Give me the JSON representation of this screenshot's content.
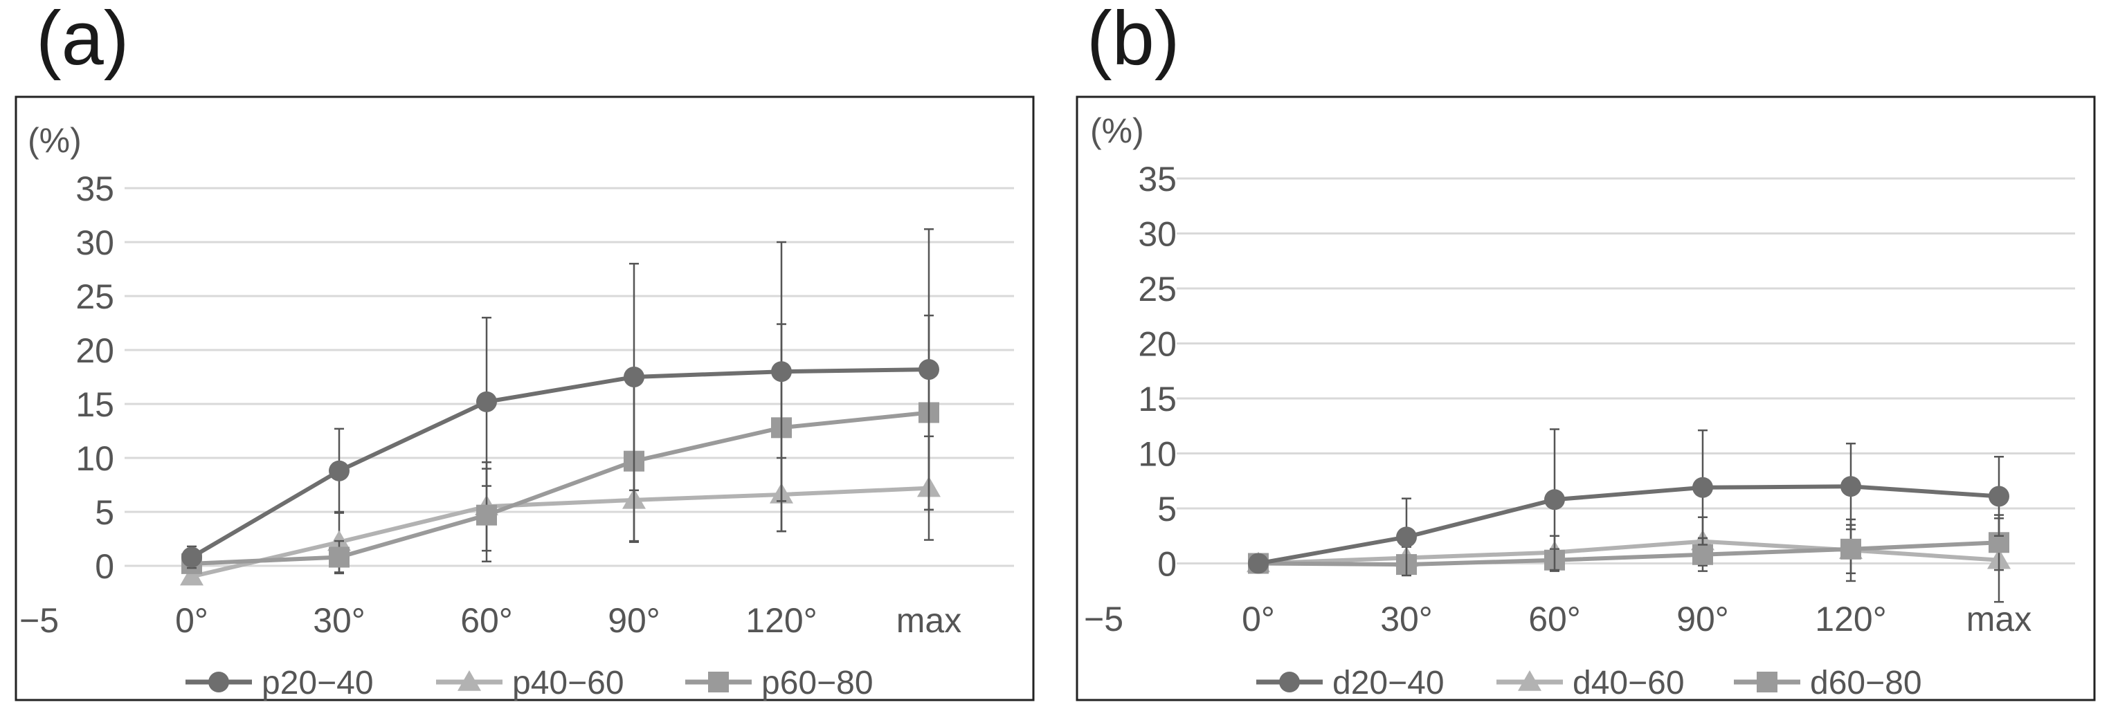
{
  "panels": [
    {
      "label": "(a)"
    },
    {
      "label": "(b)"
    }
  ],
  "chart_data": [
    {
      "type": "line",
      "panel": "(a)",
      "categories": [
        "0°",
        "30°",
        "60°",
        "90°",
        "120°",
        "max"
      ],
      "y_unit": "(%)",
      "ylim": [
        -5,
        35
      ],
      "yticks": [
        35,
        30,
        25,
        20,
        15,
        10,
        5,
        0,
        -5
      ],
      "ytick_labels": [
        "35",
        "30",
        "25",
        "20",
        "15",
        "10",
        "5",
        "0",
        "−5"
      ],
      "grid": true,
      "legend_position": "bottom",
      "series": [
        {
          "name": "p20−40",
          "marker": "circle",
          "color": "#6e6e6e",
          "values": [
            0.8,
            8.8,
            15.2,
            17.5,
            18.0,
            18.2
          ],
          "errors": [
            1.0,
            3.9,
            7.8,
            10.5,
            12.0,
            13.0
          ]
        },
        {
          "name": "p40−60",
          "marker": "triangle",
          "color": "#b2b2b2",
          "values": [
            -1.0,
            2.2,
            5.5,
            6.1,
            6.6,
            7.2
          ],
          "errors": [
            0.6,
            2.8,
            4.1,
            3.9,
            3.4,
            4.8
          ]
        },
        {
          "name": "p60−80",
          "marker": "square",
          "color": "#9a9a9a",
          "values": [
            0.2,
            0.8,
            4.7,
            9.7,
            12.8,
            14.2
          ],
          "errors": [
            0.7,
            1.5,
            4.3,
            7.4,
            9.6,
            9.0
          ]
        }
      ]
    },
    {
      "type": "line",
      "panel": "(b)",
      "categories": [
        "0°",
        "30°",
        "60°",
        "90°",
        "120°",
        "max"
      ],
      "y_unit": "(%)",
      "ylim": [
        -5,
        35
      ],
      "yticks": [
        35,
        30,
        25,
        20,
        15,
        10,
        5,
        0,
        -5
      ],
      "ytick_labels": [
        "35",
        "30",
        "25",
        "20",
        "15",
        "10",
        "5",
        "0",
        "−5"
      ],
      "grid": true,
      "legend_position": "bottom",
      "series": [
        {
          "name": "d20−40",
          "marker": "circle",
          "color": "#6e6e6e",
          "values": [
            0.0,
            2.4,
            5.8,
            6.9,
            7.0,
            6.1
          ],
          "errors": [
            0.3,
            3.5,
            6.4,
            5.2,
            3.9,
            3.6
          ]
        },
        {
          "name": "d40−60",
          "marker": "triangle",
          "color": "#b2b2b2",
          "values": [
            0.0,
            0.5,
            1.0,
            2.0,
            1.2,
            0.3
          ],
          "errors": [
            0.3,
            1.0,
            1.5,
            2.2,
            2.8,
            3.8
          ]
        },
        {
          "name": "d60−80",
          "marker": "square",
          "color": "#9a9a9a",
          "values": [
            0.0,
            -0.1,
            0.3,
            0.8,
            1.3,
            1.9
          ],
          "errors": [
            0.3,
            0.6,
            1.0,
            1.5,
            2.2,
            2.5
          ]
        }
      ]
    }
  ]
}
